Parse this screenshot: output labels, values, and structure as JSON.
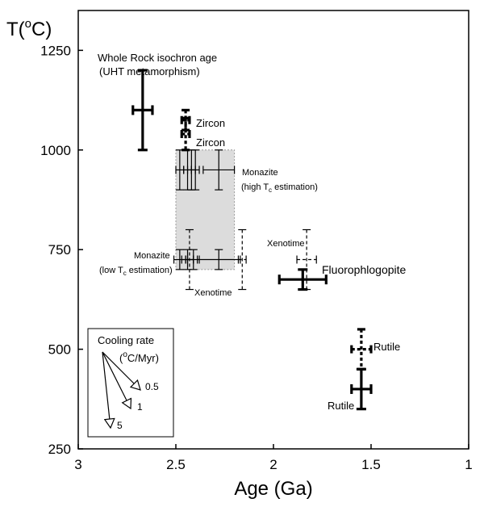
{
  "chart_data": {
    "type": "scatter",
    "title": "",
    "xlabel": "Age (Ga)",
    "ylabel_main": "T(",
    "ylabel_sup": "o",
    "ylabel_end": "C)",
    "xlim": [
      3,
      1
    ],
    "ylim": [
      250,
      1350
    ],
    "x_ticks": [
      3,
      2.5,
      2,
      1.5,
      1
    ],
    "x_tick_labels": [
      "3",
      "2.5",
      "2",
      "1.5",
      "1"
    ],
    "y_ticks": [
      250,
      500,
      750,
      1000,
      1250
    ],
    "y_tick_labels": [
      "250",
      "500",
      "750",
      "1000",
      "1250"
    ],
    "grid": false,
    "shaded_region": {
      "x": [
        2.2,
        2.5
      ],
      "y": [
        700,
        1000
      ],
      "color": "#dcdcdc"
    },
    "series": [
      {
        "label_lines": [
          "Whole Rock isochron age",
          "(UHT metamorphism)"
        ],
        "points": [
          {
            "x": 2.67,
            "y": 1100,
            "xerr": 0.05,
            "yerr": 100
          }
        ],
        "style": "thick"
      },
      {
        "label": "Zircon",
        "points": [
          {
            "x": 2.45,
            "y": 1075,
            "xerr": 0.02,
            "yerr": 25
          }
        ],
        "style": "thick-dashed"
      },
      {
        "label": "Zircon",
        "points": [
          {
            "x": 2.45,
            "y": 1040,
            "xerr": 0.02,
            "yerr": 40
          }
        ],
        "style": "thick-dashed"
      },
      {
        "label_main": "Monazite",
        "label_sub_prefix": "(high T",
        "label_sub": "c",
        "label_sub_suffix": " estimation)",
        "points": [
          {
            "x": 2.48,
            "y": 950,
            "xerr": 0.02,
            "yerr": 50
          },
          {
            "x": 2.44,
            "y": 950,
            "xerr": 0.02,
            "yerr": 50
          },
          {
            "x": 2.42,
            "y": 950,
            "xerr": 0.02,
            "yerr": 50
          },
          {
            "x": 2.4,
            "y": 950,
            "xerr": 0.02,
            "yerr": 50
          },
          {
            "x": 2.28,
            "y": 950,
            "xerr": 0.08,
            "yerr": 50
          }
        ],
        "style": "thin"
      },
      {
        "label_main": "Monazite",
        "label_sub_prefix": "(low T",
        "label_sub": "c",
        "label_sub_suffix": " estimation)",
        "points": [
          {
            "x": 2.48,
            "y": 725,
            "xerr": 0.03,
            "yerr": 25
          },
          {
            "x": 2.44,
            "y": 725,
            "xerr": 0.03,
            "yerr": 25
          },
          {
            "x": 2.41,
            "y": 725,
            "xerr": 0.03,
            "yerr": 25
          },
          {
            "x": 2.28,
            "y": 725,
            "xerr": 0.11,
            "yerr": 25
          }
        ],
        "style": "thin"
      },
      {
        "label": "Xenotime",
        "points": [
          {
            "x": 2.43,
            "y": 725,
            "xerr": 0.02,
            "yerr": 75
          },
          {
            "x": 2.16,
            "y": 725,
            "xerr": 0.02,
            "yerr": 75
          }
        ],
        "style": "thin-dashed"
      },
      {
        "label": "Xenotime",
        "points": [
          {
            "x": 1.83,
            "y": 725,
            "xerr": 0.05,
            "yerr": 75
          }
        ],
        "style": "thin-dashed"
      },
      {
        "label": "Fluorophlogopite",
        "points": [
          {
            "x": 1.85,
            "y": 675,
            "xerr": 0.12,
            "yerr": 25
          }
        ],
        "style": "thick"
      },
      {
        "label": "Rutile",
        "points": [
          {
            "x": 1.55,
            "y": 500,
            "xerr": 0.05,
            "yerr": 50
          }
        ],
        "style": "thick-dashed"
      },
      {
        "label": "Rutile",
        "points": [
          {
            "x": 1.55,
            "y": 400,
            "xerr": 0.05,
            "yerr": 50
          }
        ],
        "style": "thick"
      }
    ],
    "legend": {
      "title": "Cooling rate",
      "unit_open": "(",
      "unit_sup": "o",
      "unit_close": "C/Myr)",
      "rates": [
        "0.5",
        "1",
        "5"
      ],
      "placement": "bottom-left"
    }
  }
}
